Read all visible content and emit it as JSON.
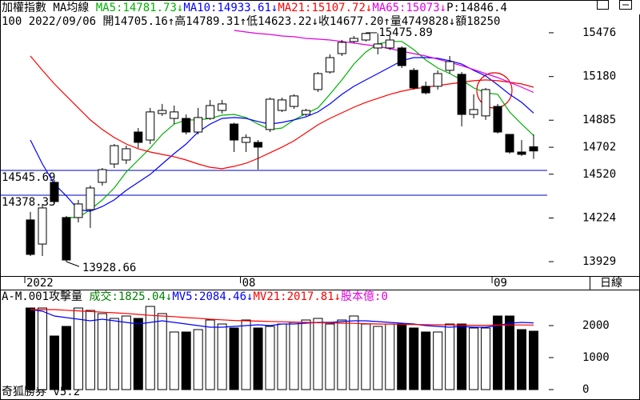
{
  "chart_data": [
    {
      "type": "candlestick",
      "title": "加權指數 MA均線",
      "info": "100 2022/09/06 開14705.16↑高14789.31↑低14623.22↓收14677.20↑量4749828↓額18250",
      "p_label": "P:14846.4",
      "categories": [
        "2022",
        null,
        null,
        null,
        null,
        null,
        null,
        null,
        null,
        null,
        null,
        null,
        null,
        null,
        null,
        null,
        null,
        null,
        "08",
        null,
        null,
        null,
        null,
        null,
        null,
        null,
        null,
        null,
        null,
        null,
        null,
        null,
        null,
        null,
        null,
        null,
        null,
        null,
        null,
        "09",
        null,
        null,
        null
      ],
      "open": [
        14211,
        14048,
        14465,
        14227,
        14227,
        14281,
        14465,
        14589,
        14616,
        14805,
        14751,
        14930,
        14897,
        14897,
        14805,
        14897,
        14951,
        14859,
        14735,
        14735,
        14822,
        14951,
        14978,
        14924,
        15092,
        15211,
        15335,
        15417,
        15427,
        15373,
        15373,
        15373,
        15222,
        15114,
        15114,
        15222,
        15195,
        14924,
        14914,
        14978,
        14789,
        14670,
        14705.16
      ],
      "high": [
        14265,
        14319,
        14481,
        14238,
        14346,
        14443,
        14562,
        14724,
        14713,
        14832,
        14968,
        14995,
        14984,
        14924,
        14968,
        15022,
        15022,
        14868,
        14789,
        14751,
        15038,
        15038,
        15060,
        14962,
        15211,
        15330,
        15427,
        15454,
        15475.89,
        15471,
        15454,
        15384,
        15238,
        15146,
        15222,
        15319,
        15211,
        15060,
        15103,
        14995,
        14789,
        14751,
        14789.31
      ],
      "low": [
        13967,
        13967,
        14319,
        13928.66,
        14194,
        14157,
        14443,
        14562,
        14589,
        14697,
        14724,
        14914,
        14859,
        14789,
        14789,
        14887,
        14930,
        14670,
        14670,
        14551,
        14805,
        14941,
        14962,
        14914,
        15076,
        15200,
        15319,
        15406,
        15417,
        15330,
        15360,
        15238,
        15092,
        15060,
        15092,
        15200,
        14843,
        14897,
        14887,
        14795,
        14659,
        14643,
        14623.22
      ],
      "close": [
        13978,
        14292,
        14335,
        13940,
        14319,
        14427,
        14551,
        14713,
        14692,
        14735,
        14941,
        14951,
        14941,
        14805,
        14903,
        14984,
        14995,
        14751,
        14768,
        14703,
        15027,
        15022,
        15049,
        14951,
        15200,
        15308,
        15411,
        15438,
        15471,
        15400,
        15427,
        15254,
        15103,
        15070,
        15200,
        15281,
        14924,
        14957,
        15092,
        14805,
        14670,
        14654,
        14677.2
      ],
      "up_color": "#ffffff",
      "down_color": "#000000",
      "series": [
        {
          "name": "MA5:14781.73↓",
          "color": "#00b000",
          "values": [
            null,
            null,
            null,
            14227,
            14227,
            14281,
            14346,
            14427,
            14535,
            14616,
            14697,
            14789,
            14859,
            14887,
            14887,
            14897,
            14919,
            14924,
            14903,
            14859,
            14822,
            14832,
            14887,
            14930,
            14968,
            15060,
            15157,
            15265,
            15346,
            15400,
            15417,
            15417,
            15362,
            15292,
            15238,
            15200,
            15157,
            15103,
            15070,
            15060,
            14941,
            14859,
            14781.73
          ]
        },
        {
          "name": "MA10:14933.61↓",
          "color": "#0000ff",
          "values": [
            14751,
            14589,
            14454,
            14373,
            14281,
            14270,
            14302,
            14346,
            14411,
            14465,
            14519,
            14589,
            14659,
            14724,
            14805,
            14859,
            14897,
            14903,
            14897,
            14876,
            14859,
            14870,
            14887,
            14908,
            14941,
            14995,
            15060,
            15114,
            15157,
            15200,
            15243,
            15287,
            15308,
            15308,
            15303,
            15287,
            15265,
            15222,
            15184,
            15124,
            15060,
            15006,
            14933.61
          ]
        },
        {
          "name": "MA21:15107.72↓",
          "color": "#ff0000",
          "values": [
            15319,
            15222,
            15130,
            15049,
            14968,
            14887,
            14822,
            14768,
            14724,
            14692,
            14670,
            14654,
            14638,
            14616,
            14589,
            14567,
            14557,
            14573,
            14594,
            14627,
            14665,
            14703,
            14746,
            14800,
            14854,
            14897,
            14935,
            14973,
            15006,
            15033,
            15060,
            15081,
            15097,
            15108,
            15119,
            15130,
            15141,
            15152,
            15157,
            15152,
            15141,
            15130,
            15107.72
          ]
        },
        {
          "name": "MA65:15073↓",
          "color": "#e000e0",
          "values": [
            null,
            null,
            null,
            null,
            null,
            null,
            null,
            null,
            null,
            null,
            null,
            null,
            null,
            null,
            null,
            null,
            null,
            15492,
            15481,
            15471,
            15465,
            15454,
            15449,
            15438,
            15433,
            15427,
            15417,
            15406,
            15395,
            15384,
            15368,
            15352,
            15335,
            15319,
            15298,
            15276,
            15254,
            15227,
            15200,
            15173,
            15141,
            15108,
            15073
          ]
        }
      ],
      "hlines": [
        14545.69,
        14378.33
      ],
      "hline_color": "#0000c0",
      "ylim": [
        13832,
        15600
      ],
      "yticks": [
        15476,
        15180,
        14885,
        14702,
        14520,
        14224,
        13929
      ]
    },
    {
      "type": "bar",
      "title": "A-M.001攻擊量",
      "series": [
        {
          "name": "成交:1825.04↓",
          "color": "#008000",
          "values": [
            2550,
            2550,
            1675,
            1975,
            2550,
            2475,
            2375,
            2225,
            2300,
            2225,
            2600,
            2375,
            1800,
            1800,
            1875,
            2175,
            2050,
            1925,
            2175,
            1925,
            1975,
            2050,
            2100,
            2175,
            2225,
            2050,
            2175,
            2300,
            2050,
            1975,
            2050,
            2050,
            1925,
            1800,
            1800,
            2050,
            2050,
            1925,
            1925,
            2300,
            2300,
            1875,
            1825.04
          ]
        },
        {
          "name": "MV5:2084.46↓",
          "color": "#0000ff",
          "type": "line",
          "values": [
            2500,
            2450,
            2300,
            2250,
            2200,
            2150,
            2200,
            2150,
            2100,
            2050,
            2100,
            2150,
            2100,
            2050,
            2000,
            1950,
            1950,
            1975,
            2000,
            2025,
            2000,
            2050,
            2050,
            2075,
            2100,
            2100,
            2125,
            2150,
            2150,
            2125,
            2100,
            2075,
            2050,
            2000,
            1975,
            1950,
            1975,
            1950,
            1950,
            2000,
            2075,
            2100,
            2084.46
          ]
        },
        {
          "name": "MV21:2017.81↓",
          "color": "#ff0000",
          "type": "line",
          "values": [
            2500,
            2500,
            2500,
            2480,
            2460,
            2440,
            2420,
            2400,
            2380,
            2350,
            2320,
            2300,
            2280,
            2250,
            2230,
            2200,
            2180,
            2160,
            2150,
            2140,
            2130,
            2120,
            2110,
            2100,
            2090,
            2080,
            2075,
            2070,
            2060,
            2050,
            2045,
            2040,
            2035,
            2030,
            2025,
            2020,
            2015,
            2010,
            2010,
            2015,
            2020,
            2020,
            2017.81
          ]
        }
      ],
      "extra_label": "股本億:0",
      "ylim": [
        -250,
        3050
      ],
      "yticks": [
        2000,
        1000,
        0
      ]
    }
  ],
  "ui": {
    "period": "日線",
    "footer": "奇狐勝券 v5.2"
  }
}
